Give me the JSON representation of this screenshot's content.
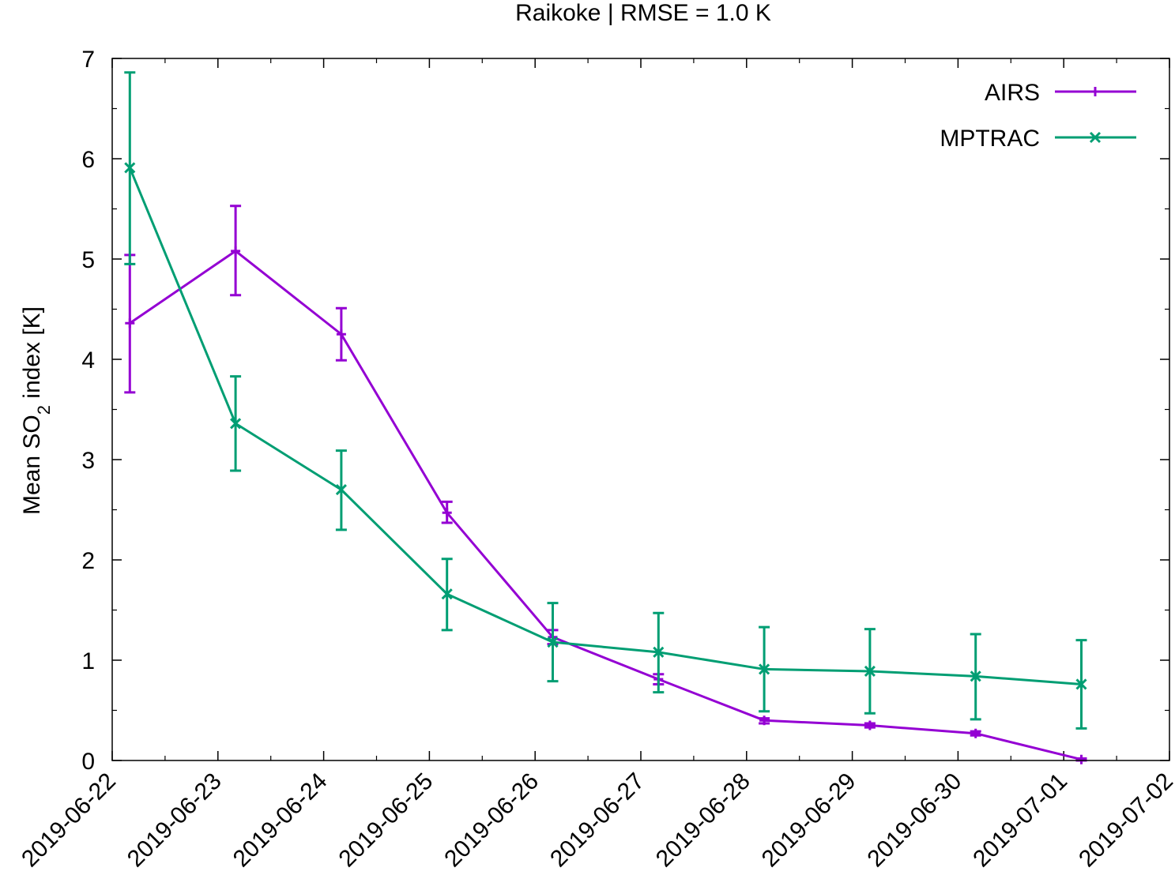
{
  "chart_data": {
    "type": "line",
    "title": "Raikoke | RMSE = 1.0 K",
    "xlabel": "",
    "ylabel_parts": {
      "before": "Mean SO",
      "sub": "2",
      "after": " index [K]"
    },
    "x_ticks": [
      "2019-06-22",
      "2019-06-23",
      "2019-06-24",
      "2019-06-25",
      "2019-06-26",
      "2019-06-27",
      "2019-06-28",
      "2019-06-29",
      "2019-06-30",
      "2019-07-01",
      "2019-07-02"
    ],
    "y_ticks": [
      "0",
      "1",
      "2",
      "3",
      "4",
      "5",
      "6",
      "7"
    ],
    "xlim": [
      "2019-06-22T00:00",
      "2019-07-02T00:00"
    ],
    "ylim": [
      0,
      7
    ],
    "grid": false,
    "legend_position": "top-right",
    "series": [
      {
        "name": "AIRS",
        "color": "#9400d3",
        "marker": "plus",
        "points": [
          {
            "x": "2019-06-22T04:00",
            "y": 4.36,
            "lo": 3.67,
            "hi": 5.04
          },
          {
            "x": "2019-06-23T04:00",
            "y": 5.08,
            "lo": 4.64,
            "hi": 5.53
          },
          {
            "x": "2019-06-24T04:00",
            "y": 4.25,
            "lo": 3.99,
            "hi": 4.51
          },
          {
            "x": "2019-06-25T04:00",
            "y": 2.47,
            "lo": 2.37,
            "hi": 2.58
          },
          {
            "x": "2019-06-26T04:00",
            "y": 1.23,
            "lo": 1.16,
            "hi": 1.3
          },
          {
            "x": "2019-06-27T04:00",
            "y": 0.81,
            "lo": 0.76,
            "hi": 0.86
          },
          {
            "x": "2019-06-28T04:00",
            "y": 0.4,
            "lo": 0.37,
            "hi": 0.42
          },
          {
            "x": "2019-06-29T04:00",
            "y": 0.35,
            "lo": 0.33,
            "hi": 0.37
          },
          {
            "x": "2019-06-30T04:00",
            "y": 0.27,
            "lo": 0.25,
            "hi": 0.29
          },
          {
            "x": "2019-07-01T04:00",
            "y": 0.01,
            "lo": 0.0,
            "hi": 0.02
          }
        ]
      },
      {
        "name": "MPTRAC",
        "color": "#009e73",
        "marker": "cross",
        "points": [
          {
            "x": "2019-06-22T04:00",
            "y": 5.91,
            "lo": 4.95,
            "hi": 6.86
          },
          {
            "x": "2019-06-23T04:00",
            "y": 3.36,
            "lo": 2.89,
            "hi": 3.83
          },
          {
            "x": "2019-06-24T04:00",
            "y": 2.7,
            "lo": 2.3,
            "hi": 3.09
          },
          {
            "x": "2019-06-25T04:00",
            "y": 1.66,
            "lo": 1.3,
            "hi": 2.01
          },
          {
            "x": "2019-06-26T04:00",
            "y": 1.18,
            "lo": 0.79,
            "hi": 1.57
          },
          {
            "x": "2019-06-27T04:00",
            "y": 1.08,
            "lo": 0.68,
            "hi": 1.47
          },
          {
            "x": "2019-06-28T04:00",
            "y": 0.91,
            "lo": 0.49,
            "hi": 1.33
          },
          {
            "x": "2019-06-29T04:00",
            "y": 0.89,
            "lo": 0.47,
            "hi": 1.31
          },
          {
            "x": "2019-06-30T04:00",
            "y": 0.84,
            "lo": 0.41,
            "hi": 1.26
          },
          {
            "x": "2019-07-01T04:00",
            "y": 0.76,
            "lo": 0.32,
            "hi": 1.2
          }
        ]
      }
    ]
  }
}
